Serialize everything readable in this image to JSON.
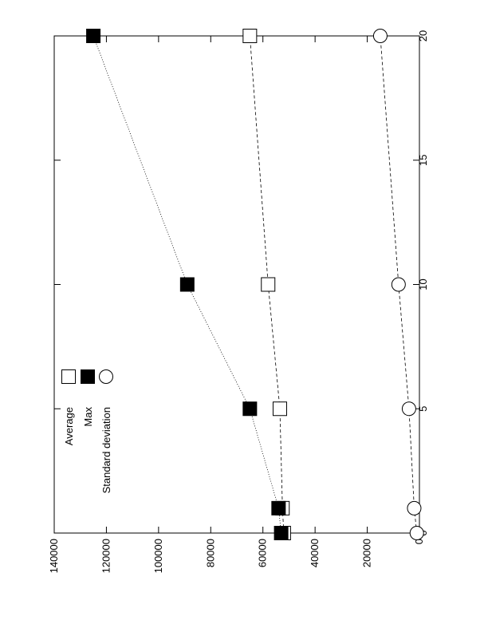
{
  "chart_data": {
    "type": "line",
    "orientation": "rotated-90",
    "x": [
      0,
      1,
      5,
      10,
      20
    ],
    "xlim": [
      0,
      20
    ],
    "ylim": [
      0,
      140000
    ],
    "x_ticks": [
      "0",
      "5",
      "10",
      "15",
      "20"
    ],
    "y_ticks": [
      "0",
      "20000",
      "40000",
      "60000",
      "80000",
      "100000",
      "120000",
      "140000"
    ],
    "grid": false,
    "legend_placement": "top-left",
    "series": [
      {
        "name": "Average",
        "marker": "open-square",
        "line_style": "dashed",
        "values": [
          52000,
          52500,
          53500,
          58000,
          65000
        ]
      },
      {
        "name": "Max",
        "marker": "filled-square",
        "line_style": "dotted",
        "values": [
          53000,
          54000,
          65000,
          89000,
          125000
        ]
      },
      {
        "name": "Standard deviation",
        "marker": "open-circle",
        "line_style": "dashed",
        "values": [
          1000,
          2000,
          4000,
          8000,
          15000
        ]
      }
    ]
  }
}
